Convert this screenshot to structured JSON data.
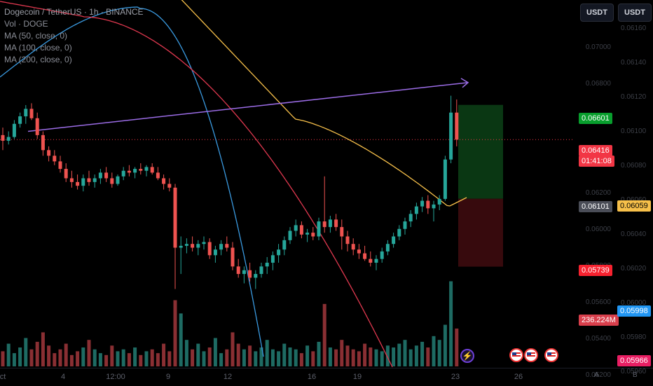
{
  "legend": {
    "symbol_line": "Dogecoin / TetherUS · 1h · BINANCE",
    "vol_line": "Vol · DOGE",
    "ma1": "MA (50, close, 0)",
    "ma2": "MA (100, close, 0)",
    "ma3": "MA (200, close, 0)"
  },
  "scale_buttons": {
    "left": "USDT",
    "right": "USDT"
  },
  "left_axis": {
    "ticks": [
      "0.07000",
      "0.06800",
      "0.06600",
      "0.06400",
      "0.06200",
      "0.06000",
      "0.05800",
      "0.05600",
      "0.05400",
      "0.05200"
    ]
  },
  "right_axis": {
    "ticks": [
      "0.06160",
      "0.06140",
      "0.06120",
      "0.06100",
      "0.06080",
      "0.06060",
      "0.06040",
      "0.06020",
      "0.06000",
      "0.05980",
      "0.05960"
    ]
  },
  "price_tags": {
    "target": "0.06601",
    "last": "0.06416",
    "countdown": "01:41:08",
    "entry": "0.06101",
    "stop": "0.05739",
    "volume": "236.224M",
    "ma_right": "0.06059",
    "right_blue": "0.05998",
    "right_pink": "0.05966"
  },
  "time_axis": {
    "labels": [
      "ct",
      "4",
      "12:00",
      "9",
      "12",
      "16",
      "19",
      "23",
      "26"
    ],
    "corner_left": "A",
    "corner_right": "B"
  },
  "colors": {
    "up": "#26a69a",
    "down": "#ef5350",
    "ma50": "#f7c04a",
    "ma100": "#e0384f",
    "ma200": "#3a9ae0",
    "trendline": "#9b6ce6",
    "target_zone": "#0b3d15",
    "stop_zone": "#3d0b0e",
    "target_tag": "#089e2d",
    "last_tag": "#f23645",
    "entry_tag": "#4a4d57",
    "stop_tag": "#f7222f",
    "volume_tag": "#d93f4c",
    "ma_tag": "#f7c04a",
    "blue_tag": "#2196f3",
    "pink_tag": "#e91e63"
  },
  "chart_data": {
    "type": "candlestick",
    "price_scale": [
      0.052,
      0.0716
    ],
    "range_note": "",
    "candles": [
      [
        0.0644,
        0.0648,
        0.0636,
        0.0641
      ],
      [
        0.0641,
        0.0646,
        0.0639,
        0.0643
      ],
      [
        0.0643,
        0.0652,
        0.0642,
        0.065
      ],
      [
        0.065,
        0.0656,
        0.0648,
        0.0654
      ],
      [
        0.0654,
        0.066,
        0.065,
        0.0658
      ],
      [
        0.0658,
        0.0661,
        0.0652,
        0.0653
      ],
      [
        0.0653,
        0.0656,
        0.0642,
        0.0644
      ],
      [
        0.0644,
        0.0646,
        0.0633,
        0.0636
      ],
      [
        0.0636,
        0.0638,
        0.063,
        0.0633
      ],
      [
        0.0633,
        0.0636,
        0.0628,
        0.063
      ],
      [
        0.063,
        0.0633,
        0.0624,
        0.0626
      ],
      [
        0.0626,
        0.0629,
        0.0619,
        0.0621
      ],
      [
        0.0621,
        0.0625,
        0.0616,
        0.0619
      ],
      [
        0.0619,
        0.0623,
        0.0615,
        0.0617
      ],
      [
        0.0617,
        0.0623,
        0.0614,
        0.0621
      ],
      [
        0.0621,
        0.0625,
        0.0617,
        0.0619
      ],
      [
        0.0619,
        0.0623,
        0.0616,
        0.0621
      ],
      [
        0.0621,
        0.0626,
        0.0618,
        0.0624
      ],
      [
        0.0624,
        0.0627,
        0.0619,
        0.0621
      ],
      [
        0.0621,
        0.0624,
        0.0616,
        0.0618
      ],
      [
        0.0618,
        0.0623,
        0.0617,
        0.0622
      ],
      [
        0.0622,
        0.0627,
        0.062,
        0.0625
      ],
      [
        0.0625,
        0.0628,
        0.0622,
        0.0624
      ],
      [
        0.0624,
        0.0627,
        0.0621,
        0.0626
      ],
      [
        0.0626,
        0.0629,
        0.0623,
        0.0625
      ],
      [
        0.0625,
        0.0628,
        0.0622,
        0.0627
      ],
      [
        0.0627,
        0.0629,
        0.0623,
        0.0624
      ],
      [
        0.0624,
        0.0627,
        0.062,
        0.0621
      ],
      [
        0.0621,
        0.0623,
        0.0615,
        0.0618
      ],
      [
        0.0618,
        0.0621,
        0.0614,
        0.0616
      ],
      [
        0.0616,
        0.0618,
        0.0562,
        0.0584
      ],
      [
        0.0584,
        0.059,
        0.057,
        0.0585
      ],
      [
        0.0585,
        0.0589,
        0.0581,
        0.0586
      ],
      [
        0.0586,
        0.059,
        0.0582,
        0.0584
      ],
      [
        0.0584,
        0.0588,
        0.058,
        0.0586
      ],
      [
        0.0586,
        0.059,
        0.0583,
        0.0587
      ],
      [
        0.0587,
        0.0589,
        0.0578,
        0.058
      ],
      [
        0.058,
        0.0585,
        0.0576,
        0.0583
      ],
      [
        0.0583,
        0.0588,
        0.058,
        0.0586
      ],
      [
        0.0586,
        0.059,
        0.0582,
        0.0584
      ],
      [
        0.0584,
        0.0587,
        0.0572,
        0.0574
      ],
      [
        0.0574,
        0.0578,
        0.0568,
        0.057
      ],
      [
        0.057,
        0.0574,
        0.0565,
        0.0572
      ],
      [
        0.0572,
        0.0576,
        0.0566,
        0.0568
      ],
      [
        0.0568,
        0.0572,
        0.0562,
        0.057
      ],
      [
        0.057,
        0.0576,
        0.0568,
        0.0574
      ],
      [
        0.0574,
        0.0579,
        0.057,
        0.0576
      ],
      [
        0.0576,
        0.0582,
        0.0572,
        0.058
      ],
      [
        0.058,
        0.0586,
        0.0576,
        0.0583
      ],
      [
        0.0583,
        0.059,
        0.058,
        0.0588
      ],
      [
        0.0588,
        0.0595,
        0.0586,
        0.0593
      ],
      [
        0.0593,
        0.0599,
        0.059,
        0.0596
      ],
      [
        0.0596,
        0.0598,
        0.0589,
        0.0591
      ],
      [
        0.0591,
        0.0594,
        0.0587,
        0.0592
      ],
      [
        0.0592,
        0.0595,
        0.0588,
        0.059
      ],
      [
        0.059,
        0.06,
        0.0588,
        0.0598
      ],
      [
        0.0598,
        0.0622,
        0.0592,
        0.0595
      ],
      [
        0.0595,
        0.0601,
        0.0592,
        0.0599
      ],
      [
        0.0599,
        0.0602,
        0.0593,
        0.0595
      ],
      [
        0.0595,
        0.0599,
        0.0583,
        0.059
      ],
      [
        0.059,
        0.0593,
        0.0582,
        0.0586
      ],
      [
        0.0586,
        0.0589,
        0.058,
        0.0583
      ],
      [
        0.0583,
        0.0586,
        0.0578,
        0.0581
      ],
      [
        0.0581,
        0.0585,
        0.0577,
        0.0578
      ],
      [
        0.0578,
        0.0582,
        0.0574,
        0.0576
      ],
      [
        0.0576,
        0.058,
        0.0572,
        0.0578
      ],
      [
        0.0578,
        0.0584,
        0.0576,
        0.0582
      ],
      [
        0.0582,
        0.0588,
        0.058,
        0.0586
      ],
      [
        0.0586,
        0.0592,
        0.0584,
        0.059
      ],
      [
        0.059,
        0.0596,
        0.0588,
        0.0594
      ],
      [
        0.0594,
        0.06,
        0.0591,
        0.0598
      ],
      [
        0.0598,
        0.0604,
        0.0595,
        0.0602
      ],
      [
        0.0602,
        0.0608,
        0.0599,
        0.0606
      ],
      [
        0.0606,
        0.0611,
        0.0603,
        0.0609
      ],
      [
        0.0609,
        0.0612,
        0.0602,
        0.0605
      ],
      [
        0.0605,
        0.0609,
        0.0598,
        0.0607
      ],
      [
        0.0607,
        0.0612,
        0.0604,
        0.061
      ],
      [
        0.061,
        0.0633,
        0.0609,
        0.0631
      ],
      [
        0.0631,
        0.0665,
        0.0629,
        0.0656
      ],
      [
        0.0656,
        0.0663,
        0.0638,
        0.06416
      ]
    ],
    "volumes": [
      8,
      12,
      7,
      10,
      15,
      9,
      13,
      18,
      11,
      7,
      9,
      12,
      6,
      8,
      10,
      14,
      9,
      7,
      6,
      11,
      8,
      9,
      7,
      10,
      6,
      8,
      9,
      7,
      12,
      8,
      35,
      28,
      14,
      9,
      12,
      8,
      10,
      15,
      7,
      9,
      18,
      12,
      9,
      11,
      8,
      10,
      14,
      9,
      8,
      12,
      10,
      9,
      7,
      11,
      8,
      13,
      33,
      10,
      9,
      14,
      11,
      9,
      8,
      12,
      10,
      9,
      8,
      11,
      10,
      12,
      14,
      9,
      11,
      13,
      10,
      16,
      14,
      22,
      45,
      20
    ],
    "volume_max": 50,
    "ma50": [
      [
        0.0665,
        0.0668
      ],
      [
        0.0715,
        0.07
      ],
      [
        0.0672,
        0.064
      ],
      [
        0.066,
        0.0628
      ],
      [
        0.0635,
        0.061
      ],
      [
        0.0611,
        0.0613
      ]
    ],
    "trendline": [
      [
        0.0646,
        0.0672
      ]
    ],
    "position": {
      "target": 0.06601,
      "entry": 0.06101,
      "stop": 0.05739
    }
  }
}
